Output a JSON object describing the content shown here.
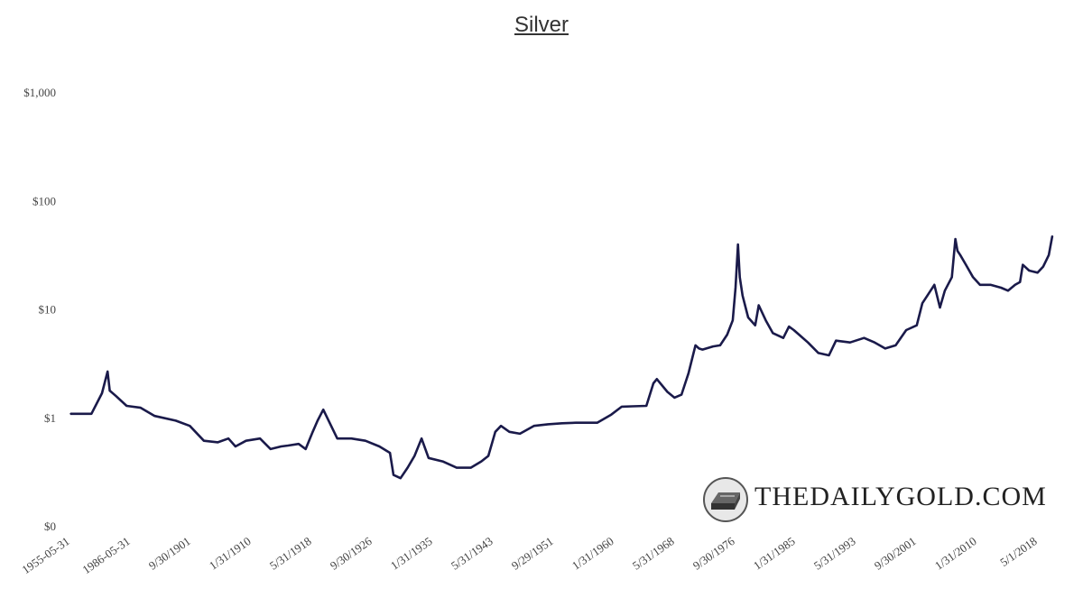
{
  "chart_data": {
    "type": "line",
    "title": "Silver",
    "xlabel": "",
    "ylabel": "",
    "y_scale": "log",
    "ylim": [
      0.1,
      1000
    ],
    "y_ticks": [
      {
        "value": 0.1,
        "label": "$0"
      },
      {
        "value": 1,
        "label": "$1"
      },
      {
        "value": 10,
        "label": "$10"
      },
      {
        "value": 100,
        "label": "$100"
      },
      {
        "value": 1000,
        "label": "$1,000"
      }
    ],
    "x_ticks": [
      "1955-05-31",
      "1986-05-31",
      "9/30/1901",
      "1/31/1910",
      "5/31/1918",
      "9/30/1926",
      "1/31/1935",
      "5/31/1943",
      "9/29/1951",
      "1/31/1960",
      "5/31/1968",
      "9/30/1976",
      "1/31/1985",
      "5/31/1993",
      "9/30/2001",
      "1/31/2010",
      "5/1/2018"
    ],
    "grid": false,
    "line_color": "#1a1a4a",
    "series": [
      {
        "x": [
          1885.0,
          1888.0,
          1889.5,
          1890.3,
          1890.6,
          1891.5,
          1893.0,
          1895.0,
          1897.0,
          1900.0,
          1902.0,
          1904.0,
          1906.0,
          1907.5,
          1908.5,
          1910.0,
          1912.0,
          1913.5,
          1915.0,
          1916.0,
          1917.5,
          1918.5,
          1919.5,
          1920.2,
          1921.0,
          1923.0,
          1925.0,
          1927.0,
          1929.0,
          1930.5,
          1931.0,
          1932.0,
          1933.0,
          1934.0,
          1935.0,
          1936.0,
          1938.0,
          1940.0,
          1942.0,
          1943.5,
          1944.5,
          1945.5,
          1946.3,
          1947.5,
          1949.0,
          1951.0,
          1953.0,
          1955.0,
          1957.0,
          1960.0,
          1962.0,
          1963.5,
          1965.0,
          1967.0,
          1968.0,
          1968.5,
          1970.0,
          1971.0,
          1972.0,
          1973.0,
          1974.0,
          1974.5,
          1975.0,
          1976.5,
          1977.5,
          1978.5,
          1979.3,
          1979.7,
          1980.05,
          1980.3,
          1980.7,
          1981.5,
          1982.5,
          1983.0,
          1984.0,
          1985.0,
          1986.5,
          1987.3,
          1988.0,
          1990.0,
          1991.5,
          1993.0,
          1994.0,
          1996.0,
          1998.0,
          1999.5,
          2001.0,
          2002.5,
          2004.0,
          2005.5,
          2006.3,
          2007.0,
          2008.0,
          2008.8,
          2009.5,
          2010.5,
          2011.0,
          2011.3,
          2011.7,
          2012.5,
          2013.5,
          2014.5,
          2016.0,
          2017.5,
          2018.5,
          2019.5,
          2020.2,
          2020.6,
          2021.5,
          2022.7,
          2023.5,
          2024.3,
          2024.8
        ],
        "values": [
          1.1,
          1.1,
          1.7,
          2.7,
          1.8,
          1.6,
          1.3,
          1.25,
          1.05,
          0.95,
          0.85,
          0.62,
          0.6,
          0.65,
          0.55,
          0.62,
          0.65,
          0.52,
          0.55,
          0.56,
          0.58,
          0.52,
          0.75,
          0.95,
          1.2,
          0.65,
          0.65,
          0.62,
          0.55,
          0.48,
          0.3,
          0.28,
          0.35,
          0.45,
          0.65,
          0.43,
          0.4,
          0.35,
          0.35,
          0.4,
          0.45,
          0.75,
          0.85,
          0.75,
          0.72,
          0.85,
          0.88,
          0.9,
          0.91,
          0.91,
          1.08,
          1.28,
          1.29,
          1.3,
          2.1,
          2.3,
          1.75,
          1.55,
          1.65,
          2.6,
          4.7,
          4.4,
          4.3,
          4.6,
          4.7,
          5.9,
          8.0,
          16.0,
          40.0,
          20.0,
          13.5,
          8.5,
          7.2,
          11.0,
          8.0,
          6.1,
          5.5,
          7.0,
          6.5,
          5.0,
          4.0,
          3.8,
          5.2,
          5.0,
          5.5,
          5.0,
          4.4,
          4.7,
          6.5,
          7.2,
          11.5,
          13.5,
          17.0,
          10.5,
          15.0,
          20.0,
          45.0,
          35.0,
          32.0,
          26.0,
          20.0,
          17.0,
          17.0,
          16.0,
          15.0,
          17.0,
          18.0,
          26.0,
          23.0,
          22.0,
          25.0,
          32.0,
          48.0
        ]
      }
    ]
  },
  "watermark": {
    "text": "THEDAILYGOLD.COM"
  }
}
